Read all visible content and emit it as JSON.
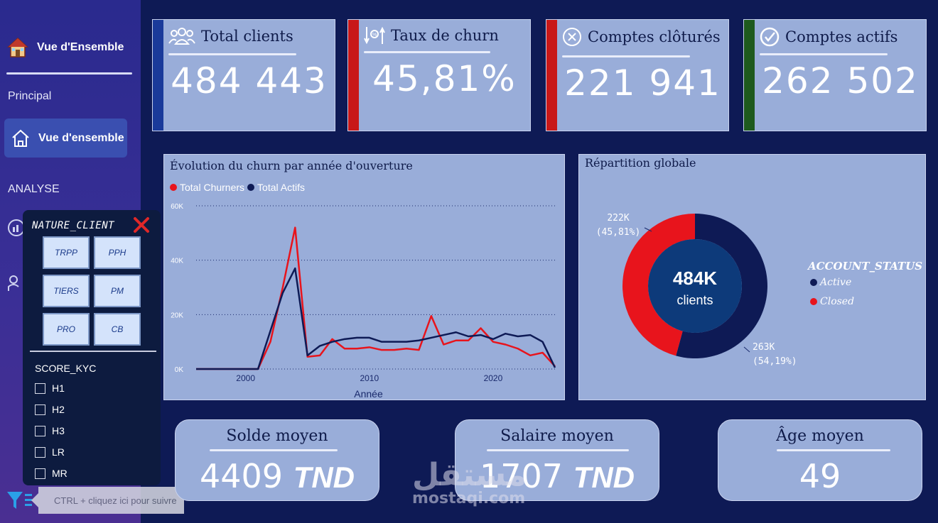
{
  "sidebar": {
    "brand": "Vue d'Ensemble",
    "section_principal": "Principal",
    "active_item": "Vue d'ensemble",
    "section_analyse": "ANALYSE"
  },
  "filter_panel": {
    "title": "NATURE_CLIENT",
    "tiles": [
      "TRPP",
      "PPH",
      "TIERS",
      "PM",
      "PRO",
      "CB"
    ],
    "score_title": "SCORE_KYC",
    "score_options": [
      "H1",
      "H2",
      "H3",
      "LR",
      "MR"
    ]
  },
  "tooltip": "CTRL + cliquez ici pour suivre",
  "kpis": [
    {
      "title": "Total clients",
      "value": "484 443",
      "accent": "#1a3a9a",
      "icon": "users-icon"
    },
    {
      "title": "Taux de churn",
      "value": "45,81%",
      "accent": "#c81818",
      "icon": "churn-icon"
    },
    {
      "title": "Comptes clôturés",
      "value": "221 941",
      "accent": "#c81818",
      "icon": "close-circle-icon"
    },
    {
      "title": "Comptes actifs",
      "value": "262 502",
      "accent": "#1e5a1e",
      "icon": "check-circle-icon"
    }
  ],
  "chart_data": [
    {
      "type": "line",
      "title": "Évolution du churn par année d'ouverture",
      "xlabel": "Année",
      "ylabel": "",
      "xlim": [
        1996,
        2025
      ],
      "ylim": [
        0,
        60000
      ],
      "yticks": [
        "0K",
        "20K",
        "40K",
        "60K"
      ],
      "xticks": [
        "2000",
        "2010",
        "2020"
      ],
      "grid": true,
      "legend": "top-left",
      "x": [
        1996,
        1997,
        1998,
        1999,
        2000,
        2001,
        2002,
        2003,
        2004,
        2005,
        2006,
        2007,
        2008,
        2009,
        2010,
        2011,
        2012,
        2013,
        2014,
        2015,
        2016,
        2017,
        2018,
        2019,
        2020,
        2021,
        2022,
        2023,
        2024,
        2025
      ],
      "series": [
        {
          "name": "Total Churners",
          "color": "#e8141c",
          "values": [
            0,
            0,
            0,
            0,
            0,
            0,
            10000,
            30000,
            52000,
            4500,
            5000,
            11000,
            7500,
            7500,
            8000,
            7000,
            7000,
            7500,
            7000,
            19500,
            9000,
            10500,
            10500,
            15000,
            10000,
            9000,
            7500,
            5000,
            6000,
            1000
          ]
        },
        {
          "name": "Total Actifs",
          "color": "#0e1a55",
          "values": [
            0,
            0,
            0,
            0,
            0,
            0,
            14000,
            28000,
            37000,
            5000,
            8500,
            10000,
            11000,
            11500,
            11500,
            10000,
            10000,
            10000,
            10500,
            11500,
            12500,
            13500,
            12000,
            12500,
            11000,
            13000,
            12000,
            12500,
            10000,
            500
          ]
        }
      ]
    },
    {
      "type": "pie",
      "title": "Répartition globale",
      "center_value": "484K",
      "center_label": "clients",
      "legend_title": "ACCOUNT_STATUS",
      "slices": [
        {
          "name": "Active",
          "value": 263000,
          "label": "263K",
          "pct": "(54,19%)",
          "color": "#0e1a55"
        },
        {
          "name": "Closed",
          "value": 222000,
          "label": "222K",
          "pct": "(45,81%)",
          "color": "#e8141c"
        }
      ]
    }
  ],
  "stats": [
    {
      "title": "Solde moyen",
      "value": "4409",
      "unit": "TND"
    },
    {
      "title": "Salaire moyen",
      "value": "1707",
      "unit": "TND"
    },
    {
      "title": "Âge moyen",
      "value": "49",
      "unit": ""
    }
  ],
  "watermark": {
    "arabic": "مستقل",
    "latin": "mostaqi.com"
  }
}
